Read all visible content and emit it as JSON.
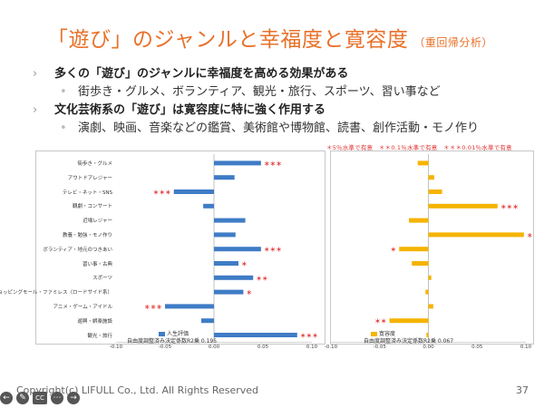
{
  "slide": {
    "title": "「遊び」のジャンルと幸福度と寛容度",
    "title_sub": "（重回帰分析）",
    "bullets": [
      {
        "heading": "多くの「遊び」のジャンルに幸福度を高める効果がある",
        "detail": "街歩き・グルメ、ボランティア、観光・旅行、スポーツ、習い事など"
      },
      {
        "heading": "文化芸術系の「遊び」は寛容度に特に強く作用する",
        "detail": "演劇、映画、音楽などの鑑賞、美術館や博物館、読書、創作活動・モノ作り"
      }
    ],
    "significance_note": "＊5％水準で有意　＊＊0.1％水準で有意　＊＊＊0.01％水準で有意",
    "copyright": "Copyright(c) LIFULL Co., Ltd. All Rights Reserved",
    "page_number": "37"
  },
  "colors": {
    "title": "#E8712A",
    "happiness": "#3F7CC6",
    "tolerance": "#F5B400",
    "star": "#E03030"
  },
  "controls": [
    "prev-arrow",
    "pen",
    "cc",
    "more",
    "next-arrow"
  ],
  "chart_data": [
    {
      "type": "bar",
      "orientation": "horizontal",
      "categories": [
        "街歩き・グルメ",
        "アウトドアレジャー",
        "テレビ・ネット・SNS",
        "観劇・コンサート",
        "近場レジャー",
        "教養・勉強・モノ作り",
        "ボランティア・地元のつきあい",
        "習い事・古典",
        "スポーツ",
        "ショッピングモール・ファミレス（ロードサイド系）",
        "アニメ・ゲーム・アイドル",
        "遊興・娯楽施設",
        "観光・旅行"
      ],
      "series": [
        {
          "name": "人生評価",
          "values": [
            0.048,
            0.021,
            -0.041,
            -0.011,
            0.032,
            0.022,
            0.048,
            0.025,
            0.04,
            0.03,
            -0.05,
            -0.013,
            0.085
          ]
        }
      ],
      "significance": [
        "***",
        "",
        "***",
        "",
        "",
        "",
        "***",
        "*",
        "**",
        "*",
        "***",
        "",
        "***"
      ],
      "xlim": [
        -0.1,
        0.1
      ],
      "ticks": [
        "-0.10",
        "-0.05",
        "0.00",
        "0.05",
        "0.10"
      ],
      "r2_label": "自由度調整済み決定係数R2乗  0.195"
    },
    {
      "type": "bar",
      "orientation": "horizontal",
      "categories": [
        "街歩き・グルメ",
        "アウトドアレジャー",
        "テレビ・ネット・SNS",
        "観劇・コンサート",
        "近場レジャー",
        "教養・勉強・モノ作り",
        "ボランティア・地元のつきあい",
        "習い事・古典",
        "スポーツ",
        "ショッピングモール・ファミレス（ロードサイド系）",
        "アニメ・ゲーム・アイドル",
        "遊興・娯楽施設",
        "観光・旅行"
      ],
      "series": [
        {
          "name": "寛容度",
          "values": [
            -0.011,
            0.006,
            0.014,
            0.071,
            -0.02,
            0.098,
            -0.03,
            -0.017,
            0.003,
            -0.003,
            0.005,
            -0.04,
            -0.002
          ]
        }
      ],
      "significance": [
        "",
        "",
        "",
        "***",
        "",
        "***",
        "*",
        "",
        "",
        "",
        "",
        "**",
        ""
      ],
      "xlim": [
        -0.1,
        0.1
      ],
      "ticks": [
        "-0.10",
        "-0.05",
        "0.00",
        "0.05",
        "0.10"
      ],
      "r2_label": "自由度調整済み決定係数R2乗  0.067"
    }
  ]
}
